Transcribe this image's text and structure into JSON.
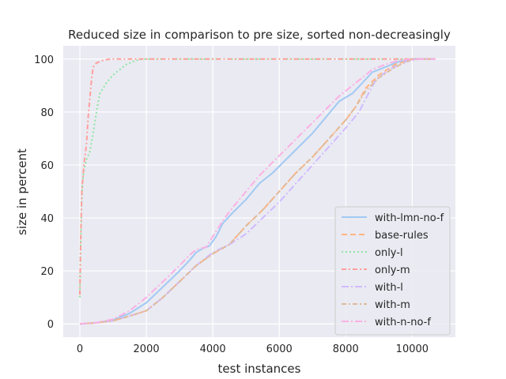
{
  "chart_data": {
    "type": "line",
    "title": "Reduced size in comparison to pre size, sorted non-decreasingly",
    "xlabel": "test instances",
    "ylabel": "size in percent",
    "xlim": [
      -500,
      11300
    ],
    "ylim": [
      -5,
      105
    ],
    "xticks": [
      0,
      2000,
      4000,
      6000,
      8000,
      10000
    ],
    "yticks": [
      0,
      20,
      40,
      60,
      80,
      100
    ],
    "grid": true,
    "background": "#eaeaf2",
    "legend_position": "lower right",
    "series": [
      {
        "name": "with-lmn-no-f",
        "color": "#a1c9f4",
        "dash": "",
        "points": [
          [
            0,
            0
          ],
          [
            500,
            0.5
          ],
          [
            1000,
            1.5
          ],
          [
            1500,
            4
          ],
          [
            2000,
            8
          ],
          [
            2500,
            14
          ],
          [
            3000,
            20
          ],
          [
            3300,
            24
          ],
          [
            3500,
            27
          ],
          [
            3700,
            28.5
          ],
          [
            3900,
            29.5
          ],
          [
            4100,
            33
          ],
          [
            4300,
            38
          ],
          [
            4600,
            42
          ],
          [
            5000,
            47
          ],
          [
            5400,
            53
          ],
          [
            5800,
            57
          ],
          [
            6200,
            62
          ],
          [
            6600,
            67
          ],
          [
            7000,
            72
          ],
          [
            7400,
            78
          ],
          [
            7800,
            84
          ],
          [
            8200,
            87
          ],
          [
            8500,
            91
          ],
          [
            8800,
            95
          ],
          [
            9200,
            97
          ],
          [
            9600,
            99
          ],
          [
            10000,
            100
          ],
          [
            10700,
            100
          ]
        ]
      },
      {
        "name": "base-rules",
        "color": "#ffb482",
        "dash": "7,4",
        "points": [
          [
            0,
            0
          ],
          [
            500,
            0.4
          ],
          [
            1000,
            1.2
          ],
          [
            1500,
            3
          ],
          [
            2000,
            5
          ],
          [
            2500,
            10
          ],
          [
            3000,
            16
          ],
          [
            3500,
            22
          ],
          [
            4000,
            26.5
          ],
          [
            4500,
            30
          ],
          [
            5000,
            37
          ],
          [
            5500,
            43
          ],
          [
            6000,
            50
          ],
          [
            6500,
            57
          ],
          [
            7000,
            63
          ],
          [
            7500,
            70
          ],
          [
            8000,
            77
          ],
          [
            8300,
            82
          ],
          [
            8600,
            89
          ],
          [
            9000,
            94
          ],
          [
            9500,
            98
          ],
          [
            10000,
            100
          ],
          [
            10700,
            100
          ]
        ]
      },
      {
        "name": "only-l",
        "color": "#8de5a1",
        "dash": "2,3",
        "points": [
          [
            0,
            10
          ],
          [
            20,
            28
          ],
          [
            50,
            45
          ],
          [
            80,
            53
          ],
          [
            120,
            58
          ],
          [
            200,
            62
          ],
          [
            300,
            65
          ],
          [
            400,
            72
          ],
          [
            500,
            80
          ],
          [
            600,
            87
          ],
          [
            800,
            91
          ],
          [
            1000,
            94
          ],
          [
            1200,
            96
          ],
          [
            1400,
            98
          ],
          [
            1700,
            99.5
          ],
          [
            1900,
            100
          ],
          [
            10700,
            100
          ]
        ]
      },
      {
        "name": "only-m",
        "color": "#ff9f9b",
        "dash": "6,3,2,3",
        "points": [
          [
            0,
            11
          ],
          [
            30,
            35
          ],
          [
            60,
            50
          ],
          [
            120,
            60
          ],
          [
            200,
            68
          ],
          [
            250,
            78
          ],
          [
            300,
            85
          ],
          [
            350,
            92
          ],
          [
            400,
            97
          ],
          [
            500,
            98.5
          ],
          [
            700,
            99.5
          ],
          [
            900,
            100
          ],
          [
            10700,
            100
          ]
        ]
      },
      {
        "name": "with-l",
        "color": "#d0bbff",
        "dash": "9,3,2,3",
        "points": [
          [
            0,
            0
          ],
          [
            500,
            0.4
          ],
          [
            1000,
            1.2
          ],
          [
            1500,
            3
          ],
          [
            2000,
            5
          ],
          [
            2500,
            10
          ],
          [
            3000,
            16
          ],
          [
            3500,
            22
          ],
          [
            4000,
            27
          ],
          [
            4500,
            30
          ],
          [
            5000,
            34
          ],
          [
            5500,
            40
          ],
          [
            6000,
            46
          ],
          [
            6500,
            53
          ],
          [
            7000,
            60
          ],
          [
            7500,
            67
          ],
          [
            8000,
            74
          ],
          [
            8400,
            80
          ],
          [
            8600,
            85
          ],
          [
            8900,
            92
          ],
          [
            9300,
            96
          ],
          [
            9800,
            99
          ],
          [
            10200,
            100
          ],
          [
            10700,
            100
          ]
        ]
      },
      {
        "name": "with-m",
        "color": "#debb9b",
        "dash": "6,3,2,3",
        "points": [
          [
            0,
            0
          ],
          [
            500,
            0.4
          ],
          [
            1000,
            1.2
          ],
          [
            1500,
            3
          ],
          [
            2000,
            5
          ],
          [
            2500,
            10
          ],
          [
            3000,
            16
          ],
          [
            3500,
            22
          ],
          [
            4000,
            26.5
          ],
          [
            4500,
            30
          ],
          [
            5000,
            37
          ],
          [
            5500,
            43
          ],
          [
            6000,
            50
          ],
          [
            6500,
            57
          ],
          [
            7000,
            63
          ],
          [
            7500,
            70
          ],
          [
            8000,
            77
          ],
          [
            8300,
            82
          ],
          [
            8600,
            88
          ],
          [
            9000,
            93
          ],
          [
            9500,
            97
          ],
          [
            10000,
            100
          ],
          [
            10700,
            100
          ]
        ]
      },
      {
        "name": "with-n-no-f",
        "color": "#fab0e4",
        "dash": "9,3,2,3",
        "points": [
          [
            0,
            0
          ],
          [
            500,
            0.5
          ],
          [
            1000,
            1.8
          ],
          [
            1500,
            5
          ],
          [
            2000,
            10
          ],
          [
            2500,
            16
          ],
          [
            3000,
            22
          ],
          [
            3300,
            26
          ],
          [
            3500,
            28
          ],
          [
            3800,
            29
          ],
          [
            4000,
            33
          ],
          [
            4300,
            39
          ],
          [
            4600,
            44
          ],
          [
            5000,
            50
          ],
          [
            5400,
            56
          ],
          [
            5800,
            61
          ],
          [
            6200,
            66
          ],
          [
            6600,
            71
          ],
          [
            7000,
            76
          ],
          [
            7400,
            81
          ],
          [
            7800,
            86
          ],
          [
            8200,
            90
          ],
          [
            8500,
            93
          ],
          [
            8800,
            96
          ],
          [
            9200,
            98
          ],
          [
            9600,
            99.5
          ],
          [
            10000,
            100
          ],
          [
            10700,
            100
          ]
        ]
      }
    ]
  }
}
